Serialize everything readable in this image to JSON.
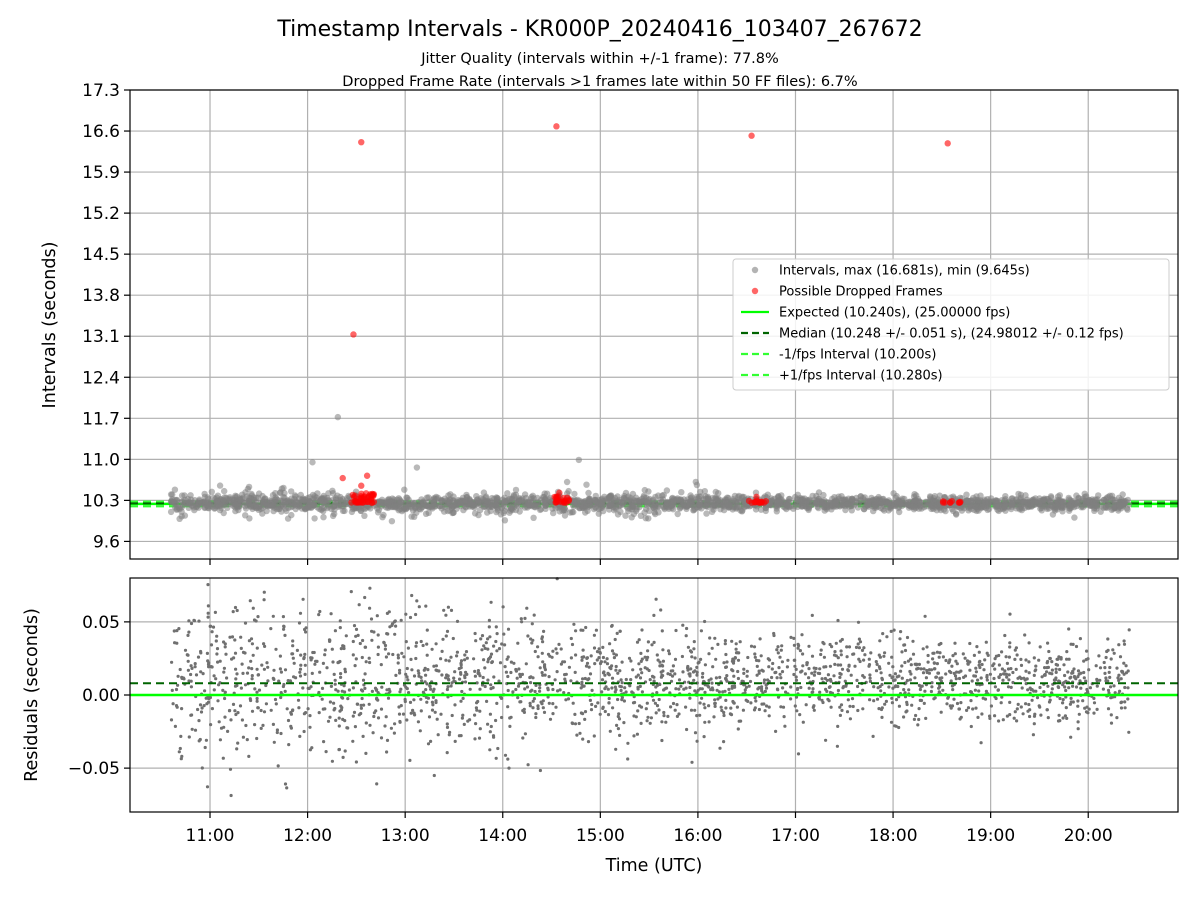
{
  "chart_data": [
    {
      "type": "scatter",
      "title": "Timestamp Intervals - KR000P_20240416_103407_267672",
      "subtitle_lines": [
        "Jitter Quality (intervals within +/-1 frame): 77.8%",
        "Dropped Frame Rate (intervals >1 frames late within 50 FF files): 6.7%"
      ],
      "xlabel": "",
      "ylabel": "Intervals (seconds)",
      "xlim_hours": [
        10.18,
        20.92
      ],
      "ylim": [
        9.3,
        17.3
      ],
      "yticks": [
        "9.6",
        "10.3",
        "11.0",
        "11.7",
        "12.4",
        "13.1",
        "13.8",
        "14.5",
        "15.2",
        "15.9",
        "16.6",
        "17.3"
      ],
      "ytick_values": [
        9.6,
        10.3,
        11.0,
        11.7,
        12.4,
        13.1,
        13.8,
        14.5,
        15.2,
        15.9,
        16.6,
        17.3
      ],
      "grid": true,
      "legend_position": "center-right",
      "legend": [
        {
          "label": "Intervals, max (16.681s), min (9.645s)",
          "kind": "dot",
          "color": "#808080"
        },
        {
          "label": "Possible Dropped Frames",
          "kind": "dot",
          "color": "#ff0000"
        },
        {
          "label": "Expected (10.240s), (25.00000 fps)",
          "kind": "line",
          "color": "#00ff00",
          "dash": "solid"
        },
        {
          "label": "Median (10.248 +/- 0.051 s), (24.98012 +/- 0.12 fps)",
          "kind": "line",
          "color": "#006400",
          "dash": "dashed"
        },
        {
          "label": "-1/fps Interval (10.200s)",
          "kind": "line",
          "color": "#32ff32",
          "dash": "dashed"
        },
        {
          "label": "+1/fps Interval (10.280s)",
          "kind": "line",
          "color": "#32ff32",
          "dash": "dashed"
        }
      ],
      "reference_lines": {
        "expected": 10.24,
        "median": 10.248,
        "minus_1fps": 10.2,
        "plus_1fps": 10.28
      },
      "series": [
        {
          "name": "Intervals, max (16.681s), min (9.645s)",
          "distribution": {
            "x_start_hours": 10.6,
            "x_end_hours": 20.42,
            "count": 2200,
            "center": 10.25,
            "spread_wide": 0.2,
            "spread_narrow": 0.06,
            "min": 9.645,
            "max": 10.95
          },
          "outliers": [
            {
              "x": 12.31,
              "y": 11.72
            },
            {
              "x": 14.78,
              "y": 10.99
            },
            {
              "x": 12.05,
              "y": 10.95
            },
            {
              "x": 13.12,
              "y": 10.86
            }
          ]
        },
        {
          "name": "Possible Dropped Frames",
          "points": [
            {
              "x": 12.55,
              "y": 16.41
            },
            {
              "x": 14.55,
              "y": 16.68
            },
            {
              "x": 16.55,
              "y": 16.52
            },
            {
              "x": 18.56,
              "y": 16.39
            },
            {
              "x": 12.47,
              "y": 13.13
            },
            {
              "x": 12.36,
              "y": 10.68
            },
            {
              "x": 12.61,
              "y": 10.72
            },
            {
              "x": 12.55,
              "y": 10.55
            },
            {
              "x": 12.6,
              "y": 10.42
            },
            {
              "x": 14.58,
              "y": 10.43
            },
            {
              "x": 16.6,
              "y": 10.36
            }
          ],
          "clusters": [
            {
              "x_from": 12.45,
              "x_to": 12.68,
              "y_min": 10.26,
              "y_max": 10.42,
              "count": 40
            },
            {
              "x_from": 14.52,
              "x_to": 14.7,
              "y_min": 10.26,
              "y_max": 10.37,
              "count": 22
            },
            {
              "x_from": 16.52,
              "x_to": 16.7,
              "y_min": 10.26,
              "y_max": 10.3,
              "count": 14
            },
            {
              "x_from": 18.5,
              "x_to": 18.7,
              "y_min": 10.26,
              "y_max": 10.29,
              "count": 10
            }
          ]
        }
      ]
    },
    {
      "type": "scatter",
      "xlabel": "Time (UTC)",
      "ylabel": "Residuals (seconds)",
      "xlim_hours": [
        10.18,
        20.92
      ],
      "ylim": [
        -0.08,
        0.08
      ],
      "yticks": [
        "−0.05",
        "0.00",
        "0.05"
      ],
      "ytick_values": [
        -0.05,
        0.0,
        0.05
      ],
      "xticks": [
        "11:00",
        "12:00",
        "13:00",
        "14:00",
        "15:00",
        "16:00",
        "17:00",
        "18:00",
        "19:00",
        "20:00"
      ],
      "xtick_values": [
        11,
        12,
        13,
        14,
        15,
        16,
        17,
        18,
        19,
        20
      ],
      "grid": true,
      "reference_lines": {
        "zero": 0.0,
        "median_offset": 0.008
      },
      "series": [
        {
          "name": "Residuals",
          "distribution": {
            "x_start_hours": 10.6,
            "x_end_hours": 20.42,
            "count": 2200,
            "center": 0.01,
            "spread_early": 0.03,
            "spread_late": 0.015
          }
        }
      ]
    }
  ],
  "colors": {
    "intervals": "#808080",
    "dropped": "#ff0000",
    "expected": "#00ff00",
    "median": "#006400",
    "fps_bounds": "#32ff32",
    "grid": "#b0b0b0"
  }
}
